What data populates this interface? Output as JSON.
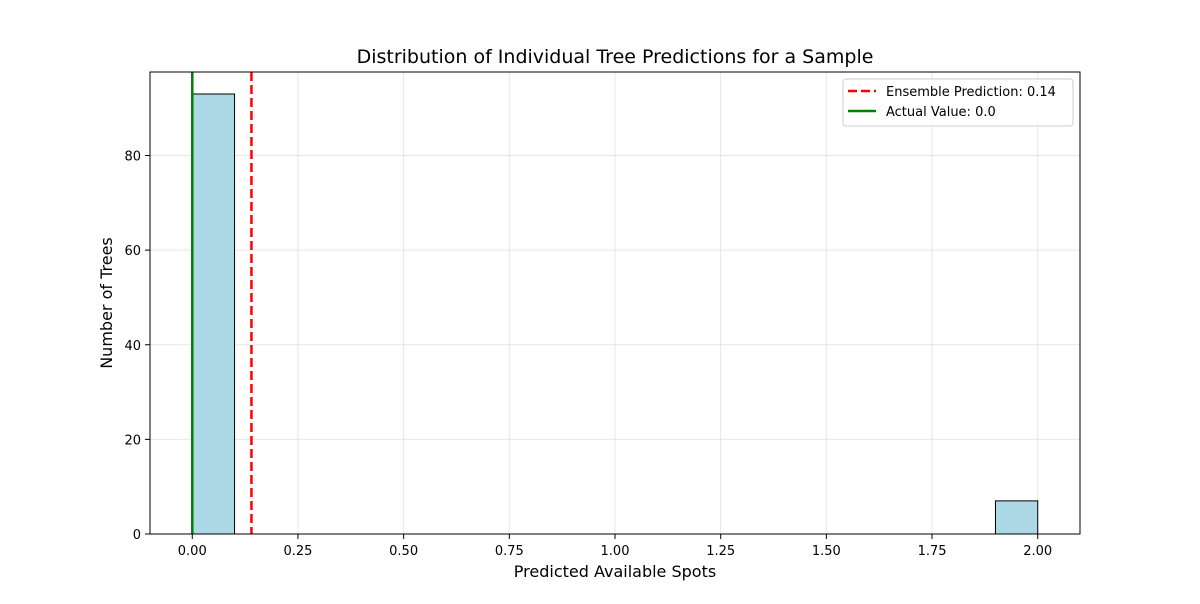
{
  "chart_data": {
    "type": "bar",
    "title": "Distribution of Individual Tree Predictions for a Sample",
    "xlabel": "Predicted Available Spots",
    "ylabel": "Number of Trees",
    "xlim": [
      -0.1,
      2.1
    ],
    "ylim": [
      0,
      97.65
    ],
    "xticks": [
      0.0,
      0.25,
      0.5,
      0.75,
      1.0,
      1.25,
      1.5,
      1.75,
      2.0
    ],
    "xtick_labels": [
      "0.00",
      "0.25",
      "0.50",
      "0.75",
      "1.00",
      "1.25",
      "1.50",
      "1.75",
      "2.00"
    ],
    "yticks": [
      0,
      20,
      40,
      60,
      80
    ],
    "ytick_labels": [
      "0",
      "20",
      "40",
      "60",
      "80"
    ],
    "grid": true,
    "bins": [
      {
        "x0": 0.0,
        "x1": 0.1,
        "count": 93
      },
      {
        "x0": 1.9,
        "x1": 2.0,
        "count": 7
      }
    ],
    "bar_color": "#add8e6",
    "bar_edge_color": "#000000",
    "reference_lines": [
      {
        "label": "Ensemble Prediction: 0.14",
        "x": 0.14,
        "color": "#ff0000",
        "style": "dashed"
      },
      {
        "label": "Actual Value: 0.0",
        "x": 0.0,
        "color": "#008000",
        "style": "solid"
      }
    ],
    "legend_position": "top-right"
  }
}
